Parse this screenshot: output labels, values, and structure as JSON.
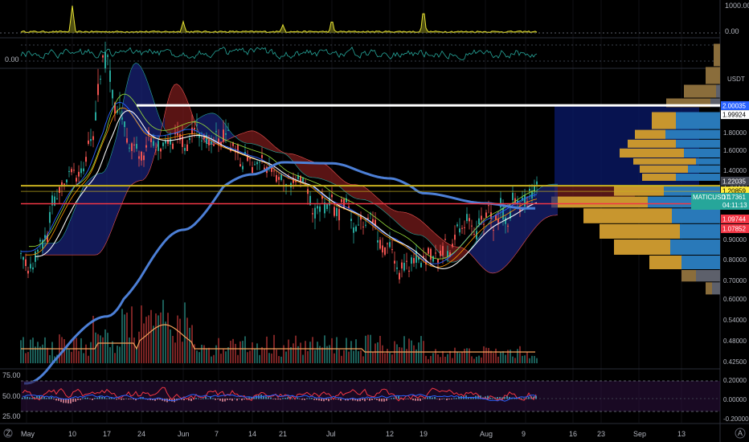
{
  "chart_data": {
    "type": "line",
    "currency": "USDT",
    "x_axis": {
      "ticks": [
        "May",
        "10",
        "17",
        "24",
        "Jun",
        "7",
        "14",
        "21",
        "Jul",
        "12",
        "19",
        "Aug",
        "9",
        "16",
        "23",
        "Sep",
        "13"
      ]
    },
    "volume_pane": {
      "type": "area",
      "ylim": [
        0,
        1000
      ],
      "ticks": [
        "1000.00",
        "0.00"
      ],
      "spikes": [
        {
          "at": "10",
          "value": 1000
        },
        {
          "at": "Jun",
          "value": 420
        },
        {
          "at": "21",
          "value": 300
        },
        {
          "at": "Jul",
          "value": 470
        },
        {
          "at": "19",
          "value": 830
        }
      ]
    },
    "oscillator_pane": {
      "type": "line",
      "ticks": [
        "0.00"
      ]
    },
    "main_pane": {
      "type": "candlestick",
      "symbol": "MATICUSDT",
      "ylim": [
        0.4,
        2.5
      ],
      "price_ticks": [
        "2.00000",
        "1.80000",
        "1.60000",
        "1.40000",
        "1.20000",
        "1.00000",
        "0.90000",
        "0.80000",
        "0.70000",
        "0.60000",
        "0.54000",
        "0.48000",
        "0.42500"
      ],
      "price_tags": [
        {
          "label": "2.00035",
          "color": "#2962ff",
          "text_color": "#ffffff"
        },
        {
          "label": "1.99924",
          "color": "#ffffff",
          "text_color": "#000000"
        },
        {
          "label": "1.22035",
          "color": "#434651",
          "text_color": "#ffffff"
        },
        {
          "label": "1.20859",
          "color": "#ffeb3b",
          "text_color": "#000000"
        },
        {
          "label": "MATICUSDT",
          "value": "1.17361",
          "countdown": "04:11:13",
          "color": "#26a69a",
          "text_color": "#ffffff"
        },
        {
          "label": "1.09744",
          "color": "#f23645",
          "text_color": "#ffffff"
        },
        {
          "label": "1.07852",
          "color": "#f23645",
          "text_color": "#ffffff"
        }
      ],
      "horizontal_lines": [
        {
          "name": "resistance",
          "value": 1.99924,
          "color": "#ffffff"
        },
        {
          "name": "yellow-level",
          "value": 1.20859,
          "color": "#c9b21f"
        },
        {
          "name": "red-level",
          "value": 1.09744,
          "color": "#f23645"
        }
      ],
      "close_path": [
        [
          "May",
          0.84
        ],
        [
          "10",
          1.3
        ],
        [
          "17",
          2.2
        ],
        [
          "24",
          1.7
        ],
        [
          "Jun",
          1.85
        ],
        [
          "7",
          1.6
        ],
        [
          "14",
          1.5
        ],
        [
          "21",
          1.25
        ],
        [
          "Jul",
          1.07
        ],
        [
          "12",
          0.88
        ],
        [
          "19",
          0.75
        ],
        [
          "Aug",
          1.05
        ],
        [
          "9",
          1.17
        ]
      ],
      "ma_blue": [
        [
          "May",
          0.38
        ],
        [
          "17",
          0.55
        ],
        [
          "Jun",
          0.95
        ],
        [
          "14",
          1.35
        ],
        [
          "21",
          1.48
        ],
        [
          "Jul",
          1.47
        ],
        [
          "12",
          1.3
        ],
        [
          "19",
          1.16
        ],
        [
          "Aug",
          1.1
        ],
        [
          "9",
          1.07
        ]
      ],
      "volume_profile": {
        "bins": 20,
        "value_area_colors": [
          "#2979b9",
          "#c8962e"
        ],
        "outer_colors": [
          "#5d606b",
          "#8a6d3b"
        ]
      }
    },
    "rsi_pane": {
      "type": "line",
      "left_ticks": [
        "75.00",
        "50.00",
        "25.00"
      ],
      "right_ticks": [
        "0.20000",
        "0.00000",
        "-0.20000"
      ],
      "series_colors": [
        "#f23645",
        "#2962ff"
      ]
    }
  },
  "watermark": "Z"
}
